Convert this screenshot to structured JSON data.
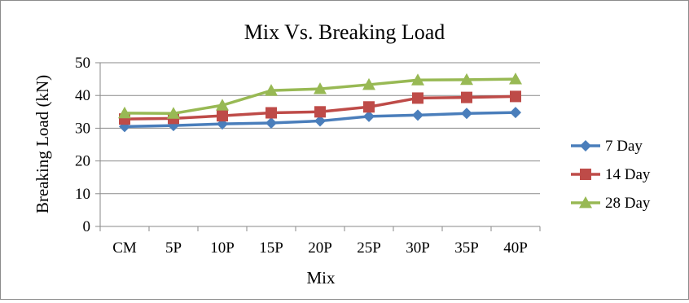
{
  "chart_data": {
    "type": "line",
    "title": "Mix Vs. Breaking Load",
    "xlabel": "Mix",
    "ylabel": "Breaking Load (kN)",
    "categories": [
      "CM",
      "5P",
      "10P",
      "15P",
      "20P",
      "25P",
      "30P",
      "35P",
      "40P"
    ],
    "ylim": [
      0,
      50
    ],
    "yticks": [
      0,
      10,
      20,
      30,
      40,
      50
    ],
    "grid": true,
    "legend_position": "right",
    "series": [
      {
        "name": "7 Day",
        "color": "#4a7ebb",
        "marker": "diamond",
        "values": [
          30.5,
          30.8,
          31.3,
          31.6,
          32.2,
          33.6,
          34.0,
          34.5,
          34.8
        ]
      },
      {
        "name": "14 Day",
        "color": "#be4b48",
        "marker": "square",
        "values": [
          32.8,
          33.0,
          33.8,
          34.7,
          35.0,
          36.5,
          39.2,
          39.4,
          39.7
        ]
      },
      {
        "name": "28 Day",
        "color": "#98b954",
        "marker": "triangle",
        "values": [
          34.6,
          34.5,
          37.0,
          41.5,
          42.0,
          43.3,
          44.7,
          44.8,
          45.0
        ]
      }
    ]
  }
}
